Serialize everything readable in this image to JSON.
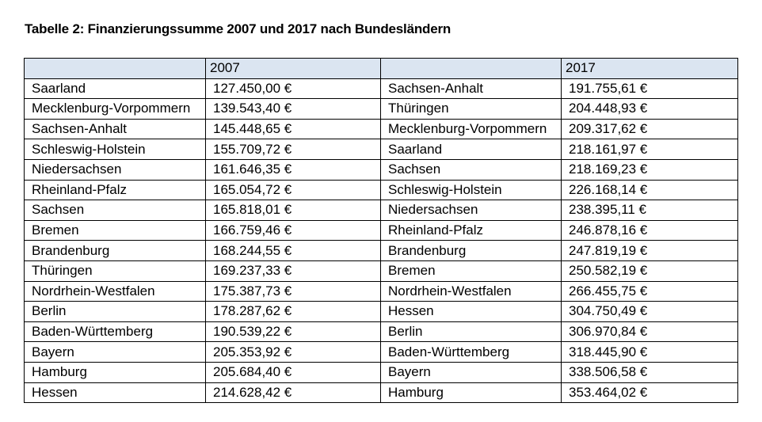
{
  "title": "Tabelle 2: Finanzierungssumme 2007 und 2017 nach Bundesländern",
  "header": {
    "left_state": "",
    "left_year": "2007",
    "right_state": "",
    "right_year": "2017"
  },
  "header_color": "#dbe5f1",
  "rows": [
    {
      "state_2007": "Saarland",
      "value_2007": "127.450,00 €",
      "state_2017": "Sachsen-Anhalt",
      "value_2017": "191.755,61 €"
    },
    {
      "state_2007": "Mecklenburg-Vorpommern",
      "value_2007": "139.543,40 €",
      "state_2017": "Thüringen",
      "value_2017": "204.448,93 €"
    },
    {
      "state_2007": "Sachsen-Anhalt",
      "value_2007": "145.448,65 €",
      "state_2017": "Mecklenburg-Vorpommern",
      "value_2017": "209.317,62 €"
    },
    {
      "state_2007": "Schleswig-Holstein",
      "value_2007": "155.709,72 €",
      "state_2017": "Saarland",
      "value_2017": "218.161,97 €"
    },
    {
      "state_2007": "Niedersachsen",
      "value_2007": "161.646,35 €",
      "state_2017": "Sachsen",
      "value_2017": "218.169,23 €"
    },
    {
      "state_2007": "Rheinland-Pfalz",
      "value_2007": "165.054,72 €",
      "state_2017": "Schleswig-Holstein",
      "value_2017": "226.168,14 €"
    },
    {
      "state_2007": "Sachsen",
      "value_2007": "165.818,01 €",
      "state_2017": "Niedersachsen",
      "value_2017": "238.395,11 €"
    },
    {
      "state_2007": "Bremen",
      "value_2007": "166.759,46 €",
      "state_2017": "Rheinland-Pfalz",
      "value_2017": "246.878,16 €"
    },
    {
      "state_2007": "Brandenburg",
      "value_2007": "168.244,55 €",
      "state_2017": "Brandenburg",
      "value_2017": "247.819,19 €"
    },
    {
      "state_2007": "Thüringen",
      "value_2007": "169.237,33 €",
      "state_2017": "Bremen",
      "value_2017": "250.582,19 €"
    },
    {
      "state_2007": "Nordrhein-Westfalen",
      "value_2007": "175.387,73 €",
      "state_2017": "Nordrhein-Westfalen",
      "value_2017": "266.455,75 €"
    },
    {
      "state_2007": "Berlin",
      "value_2007": "178.287,62 €",
      "state_2017": "Hessen",
      "value_2017": "304.750,49 €"
    },
    {
      "state_2007": "Baden-Württemberg",
      "value_2007": "190.539,22 €",
      "state_2017": "Berlin",
      "value_2017": "306.970,84 €"
    },
    {
      "state_2007": "Bayern",
      "value_2007": "205.353,92 €",
      "state_2017": "Baden-Württemberg",
      "value_2017": "318.445,90 €"
    },
    {
      "state_2007": "Hamburg",
      "value_2007": "205.684,40 €",
      "state_2017": "Bayern",
      "value_2017": "338.506,58 €"
    },
    {
      "state_2007": "Hessen",
      "value_2007": "214.628,42 €",
      "state_2017": "Hamburg",
      "value_2017": "353.464,02 €"
    }
  ]
}
